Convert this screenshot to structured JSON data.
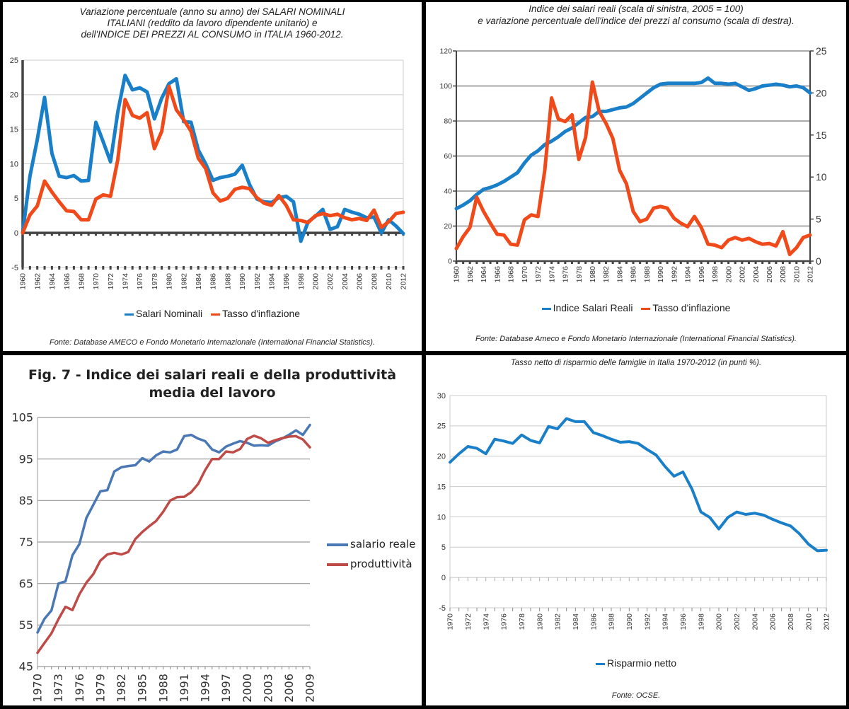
{
  "chart_data": [
    {
      "type": "line",
      "title": "Variazione percentuale (anno su anno) dei SALARI NOMINALI ITALIANI (reddito da lavoro dipendente unitario) e dell'INDICE DEI PREZZI AL CONSUMO in ITALIA 1960-2012.",
      "title_lines": [
        "Variazione percentuale (anno su anno) dei SALARI NOMINALI",
        "ITALIANI (reddito da lavoro dipendente unitario) e",
        "dell'INDICE DEI PREZZI AL CONSUMO in ITALIA 1960-2012."
      ],
      "source": "Fonte: Database AMECO e Fondo Monetario Internazionale (International Financial Statistics).",
      "xlabel": "",
      "ylabel": "",
      "ylim": [
        -5,
        25
      ],
      "yticks": [
        25,
        20,
        15,
        10,
        5,
        0,
        -5
      ],
      "x": [
        1960,
        1961,
        1962,
        1963,
        1964,
        1965,
        1966,
        1967,
        1968,
        1969,
        1970,
        1971,
        1972,
        1973,
        1974,
        1975,
        1976,
        1977,
        1978,
        1979,
        1980,
        1981,
        1982,
        1983,
        1984,
        1985,
        1986,
        1987,
        1988,
        1989,
        1990,
        1991,
        1992,
        1993,
        1994,
        1995,
        1996,
        1997,
        1998,
        1999,
        2000,
        2001,
        2002,
        2003,
        2004,
        2005,
        2006,
        2007,
        2008,
        2009,
        2010,
        2011,
        2012
      ],
      "xtick_labels": [
        "1960",
        "1962",
        "1964",
        "1966",
        "1968",
        "1970",
        "1972",
        "1974",
        "1976",
        "1978",
        "1980",
        "1982",
        "1984",
        "1986",
        "1988",
        "1990",
        "1992",
        "1994",
        "1996",
        "1998",
        "2000",
        "2002",
        "2004",
        "2006",
        "2008",
        "2010",
        "2012"
      ],
      "grid": true,
      "legend_position": "bottom",
      "series": [
        {
          "name": "Salari Nominali",
          "color": "#1a7fc9",
          "values": [
            0,
            8.2,
            13.5,
            19.6,
            11.5,
            8.2,
            8.0,
            8.3,
            7.5,
            7.6,
            16.0,
            13.2,
            10.3,
            17.5,
            22.8,
            20.7,
            21.0,
            20.4,
            16.5,
            19.5,
            21.6,
            22.3,
            16.1,
            16.0,
            12.0,
            10.0,
            7.6,
            8.0,
            8.2,
            8.5,
            9.8,
            7.0,
            4.9,
            4.5,
            4.4,
            5.1,
            5.3,
            4.5,
            -1.2,
            1.6,
            2.4,
            3.4,
            0.5,
            0.9,
            3.4,
            3.0,
            2.7,
            2.2,
            2.3,
            0,
            1.9,
            1.0,
            -0.1
          ]
        },
        {
          "name": "Tasso d'inflazione",
          "color": "#f04a1a",
          "values": [
            0,
            2.6,
            3.9,
            7.5,
            5.9,
            4.5,
            3.2,
            3.1,
            1.9,
            1.9,
            4.9,
            5.5,
            5.3,
            10.6,
            19.3,
            17.0,
            16.6,
            17.4,
            12.2,
            14.7,
            21.2,
            17.8,
            16.4,
            14.7,
            10.8,
            9.3,
            5.8,
            4.6,
            5.0,
            6.3,
            6.6,
            6.4,
            5.1,
            4.3,
            4.0,
            5.4,
            4.0,
            1.9,
            1.8,
            1.5,
            2.5,
            2.8,
            2.5,
            2.7,
            2.2,
            1.9,
            2.1,
            1.8,
            3.3,
            0.8,
            1.6,
            2.8,
            3.0
          ]
        }
      ]
    },
    {
      "type": "line",
      "title": "Indice dei salari reali (scala di sinistra, 2005 = 100) e variazione percentuale dell'indice dei prezzi al consumo (scala di destra).",
      "title_lines": [
        "Indice dei salari reali (scala di sinistra, 2005 = 100)",
        "e variazione  percentuale dell'indice dei prezzi al consumo (scala di destra)."
      ],
      "source": "Fonte: Database Ameco e Fondo Monetario Internazionale (International Financial Statistics).",
      "xlabel": "",
      "ylabel": "",
      "ylabel_right": "",
      "ylim": [
        0,
        120
      ],
      "ylim_right": [
        0,
        25
      ],
      "yticks": [
        120,
        100,
        80,
        60,
        40,
        20,
        0
      ],
      "yticks_right": [
        25,
        20,
        15,
        10,
        5,
        0
      ],
      "x": [
        1960,
        1961,
        1962,
        1963,
        1964,
        1965,
        1966,
        1967,
        1968,
        1969,
        1970,
        1971,
        1972,
        1973,
        1974,
        1975,
        1976,
        1977,
        1978,
        1979,
        1980,
        1981,
        1982,
        1983,
        1984,
        1985,
        1986,
        1987,
        1988,
        1989,
        1990,
        1991,
        1992,
        1993,
        1994,
        1995,
        1996,
        1997,
        1998,
        1999,
        2000,
        2001,
        2002,
        2003,
        2004,
        2005,
        2006,
        2007,
        2008,
        2009,
        2010,
        2011,
        2012
      ],
      "xtick_labels": [
        "1960",
        "1962",
        "1964",
        "1966",
        "1968",
        "1970",
        "1972",
        "1974",
        "1976",
        "1978",
        "1980",
        "1982",
        "1984",
        "1986",
        "1988",
        "1990",
        "1992",
        "1994",
        "1996",
        "1998",
        "2000",
        "2002",
        "2004",
        "2006",
        "2008",
        "2010",
        "2012"
      ],
      "grid": true,
      "legend_position": "bottom",
      "series": [
        {
          "name": "Indice Salari Reali",
          "axis": "left",
          "color": "#1a7fc9",
          "values": [
            30,
            32,
            34.5,
            38,
            41,
            42,
            43.5,
            45.5,
            48,
            50.5,
            56,
            60.5,
            63,
            66.5,
            68.5,
            71,
            74,
            76,
            79,
            82,
            82.5,
            85.5,
            85.5,
            86.5,
            87.5,
            88,
            90,
            93,
            96,
            99,
            101,
            101.5,
            101.5,
            101.5,
            101.5,
            101.5,
            102,
            104.5,
            101.5,
            101.5,
            101,
            101.5,
            99.5,
            97.5,
            98.5,
            100,
            100.5,
            101,
            100.5,
            99.5,
            100,
            99,
            96
          ]
        },
        {
          "name": "Tasso d'inflazione",
          "axis": "right",
          "color": "#f04a1a",
          "values": [
            1.5,
            2.9,
            4.0,
            7.6,
            5.9,
            4.5,
            3.2,
            3.1,
            2.0,
            1.9,
            4.9,
            5.5,
            5.3,
            10.8,
            19.4,
            16.9,
            16.6,
            17.4,
            12.1,
            14.7,
            21.3,
            17.8,
            16.4,
            14.6,
            10.8,
            9.2,
            5.9,
            4.7,
            5.0,
            6.3,
            6.5,
            6.3,
            5.1,
            4.5,
            4.1,
            5.3,
            4.0,
            2.0,
            1.9,
            1.6,
            2.5,
            2.8,
            2.5,
            2.7,
            2.3,
            2.0,
            2.1,
            1.8,
            3.5,
            0.8,
            1.6,
            2.8,
            3.1
          ]
        }
      ]
    },
    {
      "type": "line",
      "title": "Fig. 7 - Indice dei salari reali e della produttività media del lavoro",
      "title_lines": [
        "Fig. 7 - Indice dei salari reali e della produttività",
        "media del lavoro"
      ],
      "xlabel": "",
      "ylabel": "",
      "ylim": [
        45,
        105
      ],
      "yticks": [
        105,
        95,
        85,
        75,
        65,
        55,
        45
      ],
      "x": [
        1970,
        1971,
        1972,
        1973,
        1974,
        1975,
        1976,
        1977,
        1978,
        1979,
        1980,
        1981,
        1982,
        1983,
        1984,
        1985,
        1986,
        1987,
        1988,
        1989,
        1990,
        1991,
        1992,
        1993,
        1994,
        1995,
        1996,
        1997,
        1998,
        1999,
        2000,
        2001,
        2002,
        2003,
        2004,
        2005,
        2006,
        2007,
        2008,
        2009
      ],
      "xtick_labels": [
        "1970",
        "1973",
        "1976",
        "1979",
        "1982",
        "1985",
        "1988",
        "1991",
        "1994",
        "1997",
        "2000",
        "2003",
        "2006",
        "2009"
      ],
      "grid": true,
      "legend_position": "right",
      "series": [
        {
          "name": "salario reale",
          "color": "#4a78b5",
          "values": [
            53.2,
            56.5,
            58.5,
            65,
            65.5,
            71.8,
            74.5,
            80.8,
            84,
            87.2,
            87.5,
            92,
            93,
            93.3,
            93.5,
            95.2,
            94.4,
            95.9,
            96.8,
            96.6,
            97.3,
            100.5,
            100.8,
            99.9,
            99.3,
            97.3,
            96.6,
            98,
            98.7,
            99.3,
            98.9,
            98.2,
            98.3,
            98.2,
            99.2,
            99.9,
            100.8,
            101.9,
            100.8,
            103.2
          ]
        },
        {
          "name": "produttività",
          "color": "#bf4b48",
          "values": [
            48.3,
            50.7,
            53,
            56.4,
            59.4,
            58.6,
            62.4,
            65.2,
            67.3,
            70.5,
            72,
            72.4,
            72,
            72.6,
            75.7,
            77.4,
            78.8,
            80.1,
            82.3,
            85,
            85.8,
            85.9,
            87,
            89,
            92.3,
            95,
            95,
            96.8,
            96.6,
            97.4,
            99.8,
            100.6,
            100,
            98.9,
            99.5,
            100,
            100.4,
            100.5,
            99.7,
            97.8
          ]
        }
      ]
    },
    {
      "type": "line",
      "title": "Tasso netto di risparmio delle famiglie in Italia 1970-2012 (in punti %).",
      "source": "Fonte: OCSE.",
      "xlabel": "",
      "ylabel": "",
      "ylim": [
        -5,
        30
      ],
      "yticks": [
        30,
        25,
        20,
        15,
        10,
        5,
        0,
        -5
      ],
      "x": [
        1970,
        1971,
        1972,
        1973,
        1974,
        1975,
        1976,
        1977,
        1978,
        1979,
        1980,
        1981,
        1982,
        1983,
        1984,
        1985,
        1986,
        1987,
        1988,
        1989,
        1990,
        1991,
        1992,
        1993,
        1994,
        1995,
        1996,
        1997,
        1998,
        1999,
        2000,
        2001,
        2002,
        2003,
        2004,
        2005,
        2006,
        2007,
        2008,
        2009,
        2010,
        2011,
        2012
      ],
      "xtick_labels": [
        "1970",
        "1972",
        "1974",
        "1976",
        "1978",
        "1980",
        "1982",
        "1984",
        "1986",
        "1988",
        "1990",
        "1992",
        "1994",
        "1996",
        "1998",
        "2000",
        "2002",
        "2004",
        "2006",
        "2008",
        "2010",
        "2012"
      ],
      "grid": true,
      "legend_position": "bottom",
      "series": [
        {
          "name": "Risparmio netto",
          "color": "#1a7fc9",
          "values": [
            19,
            20.4,
            21.6,
            21.3,
            20.4,
            22.8,
            22.5,
            22.1,
            23.5,
            22.6,
            22.2,
            24.9,
            24.5,
            26.2,
            25.7,
            25.7,
            23.9,
            23.4,
            22.8,
            22.3,
            22.4,
            22.1,
            21.1,
            20.2,
            18.3,
            16.7,
            17.4,
            14.6,
            10.8,
            9.9,
            8,
            9.9,
            10.8,
            10.4,
            10.6,
            10.3,
            9.6,
            9,
            8.5,
            7.2,
            5.5,
            4.4,
            4.5
          ]
        }
      ]
    }
  ]
}
